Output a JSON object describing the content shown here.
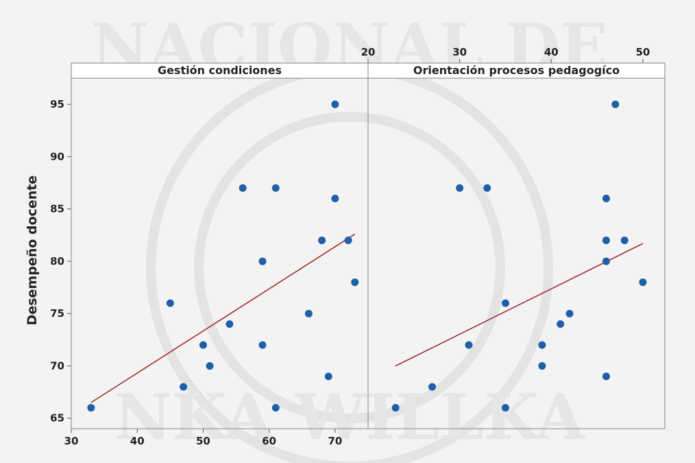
{
  "chart_data": {
    "type": "scatter",
    "ylabel": "Desempeño docente",
    "ylim": [
      64,
      97.5
    ],
    "yticks": [
      65,
      70,
      75,
      80,
      85,
      90,
      95
    ],
    "grid": false,
    "panels": [
      {
        "title": "Gestión condiciones",
        "xlim": [
          30,
          75
        ],
        "xticks": [
          30,
          40,
          50,
          60,
          70
        ],
        "xtick_position": "bottom",
        "fit_line": {
          "x": [
            33,
            73
          ],
          "y": [
            66.5,
            82.6
          ]
        },
        "points": [
          {
            "x": 33,
            "y": 66
          },
          {
            "x": 45,
            "y": 76
          },
          {
            "x": 47,
            "y": 68
          },
          {
            "x": 50,
            "y": 72
          },
          {
            "x": 51,
            "y": 70
          },
          {
            "x": 54,
            "y": 74
          },
          {
            "x": 56,
            "y": 87
          },
          {
            "x": 59,
            "y": 80
          },
          {
            "x": 59,
            "y": 72
          },
          {
            "x": 61,
            "y": 87
          },
          {
            "x": 61,
            "y": 66
          },
          {
            "x": 66,
            "y": 75
          },
          {
            "x": 68,
            "y": 82
          },
          {
            "x": 69,
            "y": 69
          },
          {
            "x": 70,
            "y": 95
          },
          {
            "x": 70,
            "y": 86
          },
          {
            "x": 72,
            "y": 82
          },
          {
            "x": 73,
            "y": 78
          }
        ]
      },
      {
        "title": "Orientación procesos pedagogíco",
        "xlim": [
          20,
          52.4
        ],
        "xticks": [
          20,
          30,
          40,
          50
        ],
        "xtick_position": "top",
        "fit_line": {
          "x": [
            23,
            50
          ],
          "y": [
            70,
            81.7
          ]
        },
        "points": [
          {
            "x": 23,
            "y": 66
          },
          {
            "x": 27,
            "y": 68
          },
          {
            "x": 30,
            "y": 87
          },
          {
            "x": 31,
            "y": 72
          },
          {
            "x": 33,
            "y": 87
          },
          {
            "x": 35,
            "y": 76
          },
          {
            "x": 35,
            "y": 66
          },
          {
            "x": 39,
            "y": 72
          },
          {
            "x": 39,
            "y": 70
          },
          {
            "x": 41,
            "y": 74
          },
          {
            "x": 42,
            "y": 75
          },
          {
            "x": 46,
            "y": 86
          },
          {
            "x": 46,
            "y": 82
          },
          {
            "x": 46,
            "y": 80
          },
          {
            "x": 46,
            "y": 69
          },
          {
            "x": 47,
            "y": 95
          },
          {
            "x": 48,
            "y": 82
          },
          {
            "x": 50,
            "y": 78
          }
        ]
      }
    ]
  },
  "watermark": {
    "top_text": "NACIONAL DE",
    "bottom_text": "NKA WILLKA"
  },
  "colors": {
    "points": "#1f5fa8",
    "fit_line": "#a52a2a",
    "frame": "#808080"
  }
}
